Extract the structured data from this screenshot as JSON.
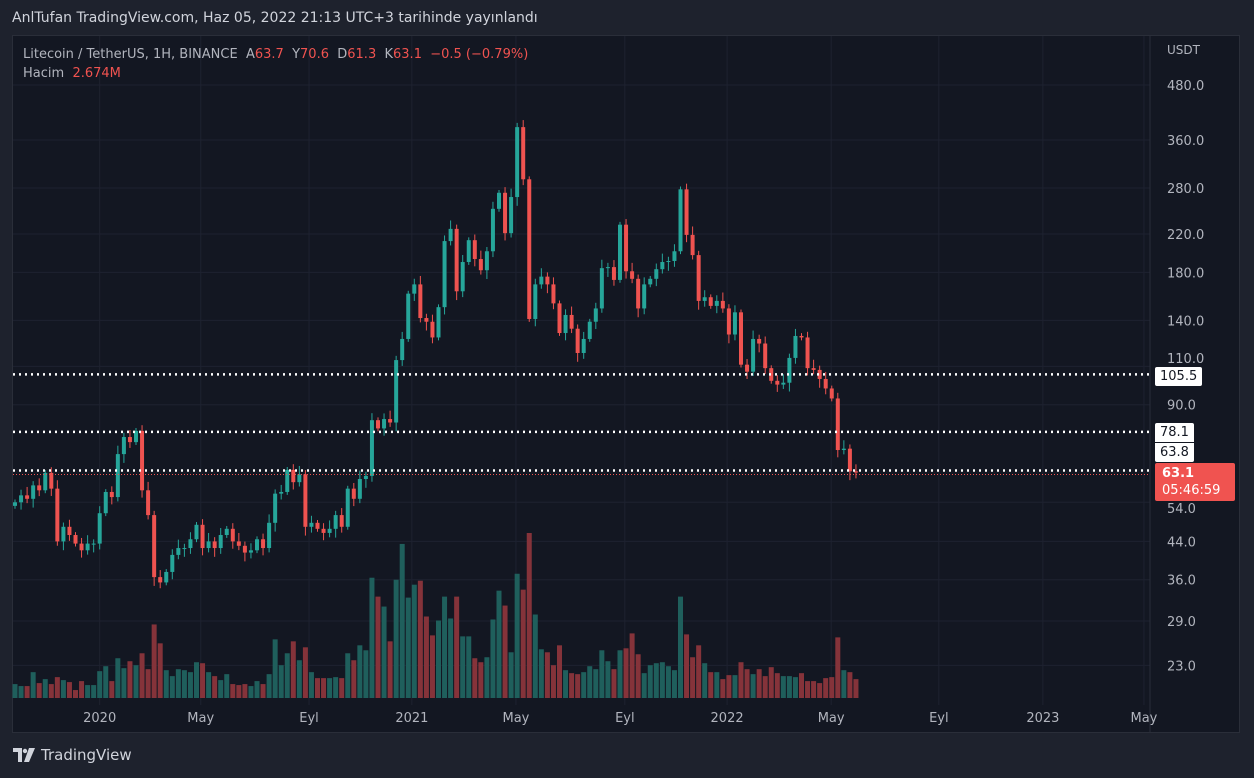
{
  "header": {
    "published": "AnlTufan TradingView.com, Haz 05, 2022 21:13 UTC+3 tarihinde yayınlandı"
  },
  "legend": {
    "symbol": "Litecoin / TetherUS, 1H, BINANCE",
    "open_label": "A",
    "open": "63.7",
    "high_label": "Y",
    "high": "70.6",
    "low_label": "D",
    "low": "61.3",
    "close_label": "K",
    "close": "63.1",
    "change": "−0.5 (−0.79%)",
    "volume_label": "Hacim",
    "volume": "2.674M"
  },
  "price_axis": {
    "currency": "USDT"
  },
  "tags": {
    "line1": "105.5",
    "line2": "78.1",
    "line3": "63.8",
    "current_price": "63.1",
    "countdown": "05:46:59"
  },
  "footer": {
    "brand": "TradingView"
  },
  "colors": {
    "up": "#26a69a",
    "down": "#ef5350",
    "up_volume": "#1f5f5c",
    "down_volume": "#85333a",
    "background": "#131722",
    "grid": "#1e2230"
  },
  "chart_data": {
    "type": "candlestick",
    "title": "Litecoin / TetherUS",
    "interval_displayed": "weekly candles",
    "yscale": "log",
    "ylim": [
      20,
      560
    ],
    "first_open": 53,
    "closes": [
      54,
      56,
      55,
      59,
      57.5,
      63,
      58,
      44,
      47.5,
      45.5,
      43.5,
      42,
      43.5,
      43.5,
      51,
      57,
      55.5,
      69.5,
      76,
      74,
      78.5,
      57.5,
      50.5,
      36.5,
      35.5,
      37.5,
      41,
      42.5,
      42.5,
      44.5,
      48,
      42.5,
      44,
      42.5,
      45.5,
      47,
      44,
      43,
      41.5,
      42,
      44.5,
      42.5,
      48.5,
      56.5,
      57,
      64,
      60,
      62.5,
      47.5,
      48.5,
      47,
      46,
      47,
      50.5,
      47.5,
      58,
      55,
      61,
      62,
      83,
      79.5,
      83.5,
      82,
      113.7,
      127,
      161,
      169,
      141.7,
      139,
      128,
      150,
      212,
      226,
      163,
      190,
      213,
      193,
      182,
      201,
      251,
      273,
      221,
      267,
      385,
      293,
      141,
      169,
      176,
      169,
      153,
      131,
      144,
      134,
      118,
      127,
      139,
      149,
      184,
      185,
      173,
      231,
      181,
      174,
      149,
      169,
      174,
      183,
      190,
      191,
      201,
      278,
      219,
      197,
      155,
      158,
      151,
      155,
      149,
      130,
      146,
      111,
      107,
      127,
      124,
      109,
      102,
      100,
      101,
      115,
      129,
      128,
      109,
      108,
      103,
      98,
      93,
      71,
      71.5,
      63.5,
      63.1
    ],
    "volume_relative": [
      14,
      12,
      12,
      26,
      15,
      19,
      14,
      21,
      18,
      16,
      8,
      17,
      13,
      13,
      27,
      32,
      17,
      40,
      30,
      37,
      33,
      45,
      29,
      74,
      55,
      28,
      22,
      29,
      28,
      26,
      36,
      35,
      26,
      22,
      18,
      24,
      14,
      13,
      14,
      12,
      17,
      14,
      24,
      59,
      33,
      45,
      57,
      38,
      51,
      26,
      20,
      20,
      20,
      21,
      20,
      45,
      38,
      53,
      48,
      121,
      102,
      92,
      57,
      119,
      155,
      101,
      114,
      118,
      82,
      63,
      78,
      102,
      80,
      102,
      62,
      62,
      40,
      36,
      41,
      79,
      108,
      93,
      46,
      125,
      109,
      166,
      84,
      49,
      46,
      33,
      53,
      28,
      25,
      24,
      26,
      32,
      29,
      48,
      37,
      29,
      48,
      50,
      65,
      44,
      25,
      33,
      35,
      36,
      32,
      28,
      102,
      64,
      41,
      53,
      35,
      26,
      26,
      19,
      23,
      23,
      36,
      29,
      24,
      29,
      22,
      31,
      25,
      22,
      22,
      21,
      25,
      17,
      17,
      15,
      20,
      21,
      61,
      28,
      26,
      19
    ],
    "y_ticks": [
      "480.0",
      "360.0",
      "280.0",
      "220.0",
      "180.0",
      "140.0",
      "110.0",
      "90.0",
      "54.0",
      "44.0",
      "36.0",
      "29.0",
      "23.0"
    ],
    "x_ticks": [
      {
        "label": "2020",
        "week": 14
      },
      {
        "label": "May",
        "week": 30.7
      },
      {
        "label": "Eyl",
        "week": 48.6
      },
      {
        "label": "2021",
        "week": 65.6
      },
      {
        "label": "May",
        "week": 82.8
      },
      {
        "label": "Eyl",
        "week": 100.8
      },
      {
        "label": "2022",
        "week": 117.7
      },
      {
        "label": "May",
        "week": 134.9
      },
      {
        "label": "Eyl",
        "week": 152.7
      },
      {
        "label": "2023",
        "week": 169.9
      },
      {
        "label": "May",
        "week": 186.6
      }
    ],
    "horizontal_lines": [
      105.5,
      78.1,
      63.8
    ],
    "current_price": 63.1
  }
}
